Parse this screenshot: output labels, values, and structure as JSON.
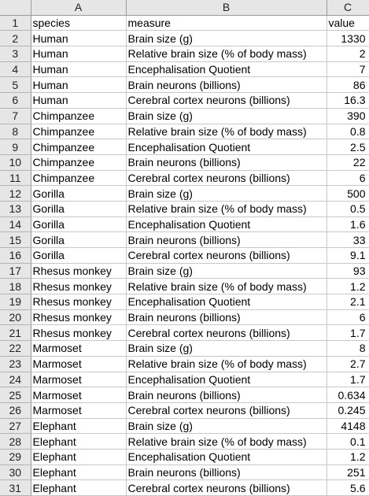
{
  "columns": [
    "A",
    "B",
    "C"
  ],
  "rows": [
    {
      "num": "1",
      "a": "species",
      "b": "measure",
      "c": "value",
      "c_align": "left"
    },
    {
      "num": "2",
      "a": "Human",
      "b": "Brain size (g)",
      "c": "1330"
    },
    {
      "num": "3",
      "a": "Human",
      "b": "Relative brain size (% of body mass)",
      "c": "2"
    },
    {
      "num": "4",
      "a": "Human",
      "b": "Encephalisation Quotient",
      "c": "7"
    },
    {
      "num": "5",
      "a": "Human",
      "b": "Brain neurons (billions)",
      "c": "86"
    },
    {
      "num": "6",
      "a": "Human",
      "b": "Cerebral cortex neurons (billions)",
      "c": "16.3"
    },
    {
      "num": "7",
      "a": "Chimpanzee",
      "b": "Brain size (g)",
      "c": "390"
    },
    {
      "num": "8",
      "a": "Chimpanzee",
      "b": "Relative brain size (% of body mass)",
      "c": "0.8"
    },
    {
      "num": "9",
      "a": "Chimpanzee",
      "b": "Encephalisation Quotient",
      "c": "2.5"
    },
    {
      "num": "10",
      "a": "Chimpanzee",
      "b": "Brain neurons (billions)",
      "c": "22"
    },
    {
      "num": "11",
      "a": "Chimpanzee",
      "b": "Cerebral cortex neurons (billions)",
      "c": "6"
    },
    {
      "num": "12",
      "a": "Gorilla",
      "b": "Brain size (g)",
      "c": "500"
    },
    {
      "num": "13",
      "a": "Gorilla",
      "b": "Relative brain size (% of body mass)",
      "c": "0.5"
    },
    {
      "num": "14",
      "a": "Gorilla",
      "b": "Encephalisation Quotient",
      "c": "1.6"
    },
    {
      "num": "15",
      "a": "Gorilla",
      "b": "Brain neurons (billions)",
      "c": "33"
    },
    {
      "num": "16",
      "a": "Gorilla",
      "b": "Cerebral cortex neurons (billions)",
      "c": "9.1"
    },
    {
      "num": "17",
      "a": "Rhesus monkey",
      "b": "Brain size (g)",
      "c": "93"
    },
    {
      "num": "18",
      "a": "Rhesus monkey",
      "b": "Relative brain size (% of body mass)",
      "c": "1.2"
    },
    {
      "num": "19",
      "a": "Rhesus monkey",
      "b": "Encephalisation Quotient",
      "c": "2.1"
    },
    {
      "num": "20",
      "a": "Rhesus monkey",
      "b": "Brain neurons (billions)",
      "c": "6"
    },
    {
      "num": "21",
      "a": "Rhesus monkey",
      "b": "Cerebral cortex neurons (billions)",
      "c": "1.7"
    },
    {
      "num": "22",
      "a": "Marmoset",
      "b": "Brain size (g)",
      "c": "8"
    },
    {
      "num": "23",
      "a": "Marmoset",
      "b": "Relative brain size (% of body mass)",
      "c": "2.7"
    },
    {
      "num": "24",
      "a": "Marmoset",
      "b": "Encephalisation Quotient",
      "c": "1.7"
    },
    {
      "num": "25",
      "a": "Marmoset",
      "b": "Brain neurons (billions)",
      "c": "0.634"
    },
    {
      "num": "26",
      "a": "Marmoset",
      "b": "Cerebral cortex neurons (billions)",
      "c": "0.245"
    },
    {
      "num": "27",
      "a": "Elephant",
      "b": "Brain size (g)",
      "c": "4148"
    },
    {
      "num": "28",
      "a": "Elephant",
      "b": "Relative brain size (% of body mass)",
      "c": "0.1"
    },
    {
      "num": "29",
      "a": "Elephant",
      "b": "Encephalisation Quotient",
      "c": "1.2"
    },
    {
      "num": "30",
      "a": "Elephant",
      "b": "Brain neurons (billions)",
      "c": "251"
    },
    {
      "num": "31",
      "a": "Elephant",
      "b": "Cerebral cortex neurons (billions)",
      "c": "5.6"
    }
  ]
}
